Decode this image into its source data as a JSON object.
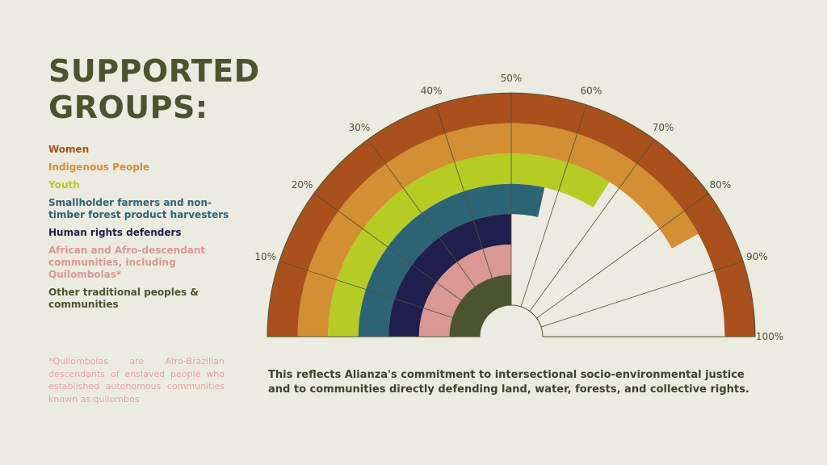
{
  "page": {
    "title_line1": "SUPPORTED",
    "title_line2": "GROUPS:",
    "caption": "This reflects Alianza's commitment to intersectional socio-environmental justice and to communities directly defending land, water, forests, and collective rights.",
    "footnote": "*Quilombolas are Afro-Brazilian descendants of enslaved people who established autonomous communities known as quilombos"
  },
  "chart_data": {
    "type": "radial-bar",
    "axis_range": [
      0,
      100
    ],
    "tick_labels": [
      "10%",
      "20%",
      "30%",
      "40%",
      "50%",
      "60%",
      "70%",
      "80%",
      "90%",
      "100%"
    ],
    "tick_values": [
      10,
      20,
      30,
      40,
      50,
      60,
      70,
      80,
      90,
      100
    ],
    "series": [
      {
        "name": "Women",
        "value": 100,
        "color": "#a9501c"
      },
      {
        "name": "Indigenous People",
        "value": 84,
        "color": "#d48e34"
      },
      {
        "name": "Youth",
        "value": 68,
        "color": "#b5cc24"
      },
      {
        "name": "Smallholder farmers and non-timber forest product harvesters",
        "value": 57,
        "color": "#2d6475"
      },
      {
        "name": "Human rights defenders",
        "value": 50,
        "color": "#1f1e4d"
      },
      {
        "name": "African and Afro-descendant communities, including Quilombolas*",
        "value": 50,
        "color": "#d99893"
      },
      {
        "name": "Other traditional peoples & communities",
        "value": 50,
        "color": "#4b5330"
      }
    ]
  }
}
